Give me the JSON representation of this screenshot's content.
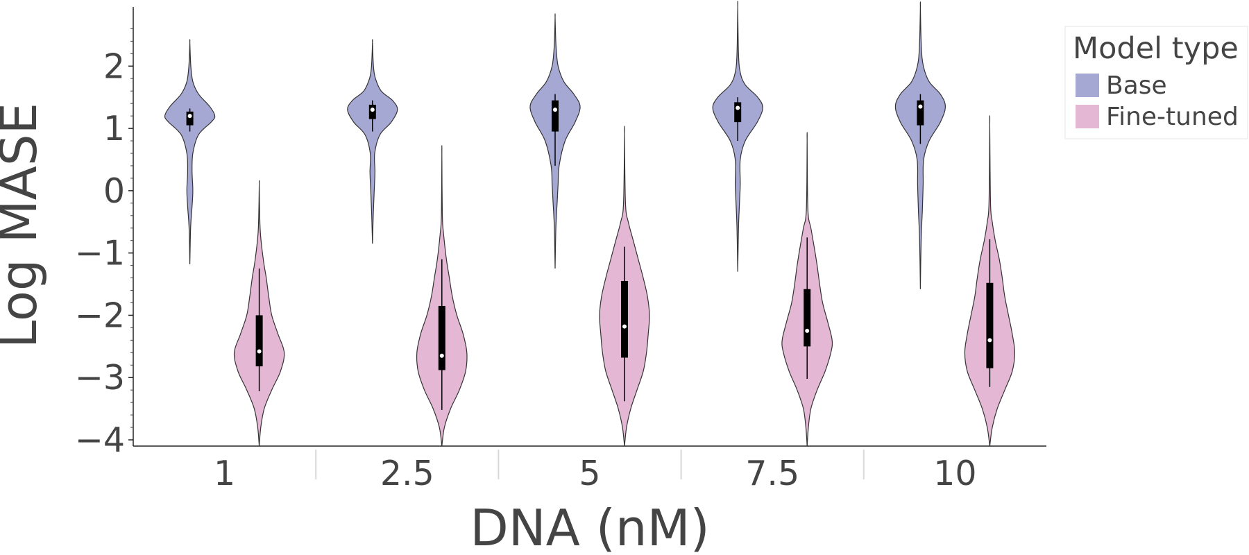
{
  "chart_data": {
    "type": "violin",
    "xlabel": "DNA (nM)",
    "ylabel": "Log MASE",
    "ylim": [
      -4.1,
      2.95
    ],
    "y_ticks": [
      2,
      1,
      0,
      -1,
      -2,
      -3,
      -4
    ],
    "y_tick_labels": [
      "2",
      "1",
      "0",
      "−1",
      "−2",
      "−3",
      "−4"
    ],
    "categories": [
      "1",
      "2.5",
      "5",
      "7.5",
      "10"
    ],
    "legend": {
      "title": "Model type",
      "placement": "top-right",
      "items": [
        {
          "label": "Base",
          "color": "#a6a8d4"
        },
        {
          "label": "Fine-tuned",
          "color": "#e4b8d4"
        }
      ]
    },
    "series": [
      {
        "name": "Base",
        "color": "#a6a8d4",
        "violins": [
          {
            "category": "1",
            "min": -1.18,
            "max": 2.38,
            "q1": 1.05,
            "median": 1.2,
            "q3": 1.27,
            "whisker_low": 0.95,
            "whisker_high": 1.32,
            "profile": [
              [
                -1.18,
                0.0
              ],
              [
                -0.6,
                0.03
              ],
              [
                -0.3,
                0.08
              ],
              [
                0.0,
                0.12
              ],
              [
                0.3,
                0.09
              ],
              [
                0.6,
                0.12
              ],
              [
                0.9,
                0.35
              ],
              [
                1.1,
                0.85
              ],
              [
                1.2,
                1.0
              ],
              [
                1.35,
                0.8
              ],
              [
                1.55,
                0.35
              ],
              [
                1.75,
                0.12
              ],
              [
                2.0,
                0.04
              ],
              [
                2.38,
                0.0
              ]
            ]
          },
          {
            "category": "2.5",
            "min": -0.85,
            "max": 2.38,
            "q1": 1.15,
            "median": 1.3,
            "q3": 1.38,
            "whisker_low": 0.95,
            "whisker_high": 1.45,
            "profile": [
              [
                -0.85,
                0.0
              ],
              [
                -0.4,
                0.03
              ],
              [
                0.0,
                0.07
              ],
              [
                0.3,
                0.1
              ],
              [
                0.6,
                0.09
              ],
              [
                0.9,
                0.3
              ],
              [
                1.1,
                0.75
              ],
              [
                1.3,
                1.0
              ],
              [
                1.45,
                0.8
              ],
              [
                1.6,
                0.35
              ],
              [
                1.8,
                0.12
              ],
              [
                2.0,
                0.04
              ],
              [
                2.38,
                0.0
              ]
            ]
          },
          {
            "category": "5",
            "min": -1.25,
            "max": 2.78,
            "q1": 0.95,
            "median": 1.3,
            "q3": 1.45,
            "whisker_low": 0.4,
            "whisker_high": 1.55,
            "profile": [
              [
                -1.25,
                0.0
              ],
              [
                -0.6,
                0.03
              ],
              [
                -0.2,
                0.08
              ],
              [
                0.1,
                0.12
              ],
              [
                0.4,
                0.16
              ],
              [
                0.8,
                0.4
              ],
              [
                1.1,
                0.8
              ],
              [
                1.35,
                1.0
              ],
              [
                1.55,
                0.75
              ],
              [
                1.75,
                0.35
              ],
              [
                2.0,
                0.12
              ],
              [
                2.3,
                0.04
              ],
              [
                2.78,
                0.0
              ]
            ]
          },
          {
            "category": "7.5",
            "min": -1.3,
            "max": 2.95,
            "q1": 1.1,
            "median": 1.33,
            "q3": 1.42,
            "whisker_low": 0.8,
            "whisker_high": 1.5,
            "profile": [
              [
                -1.3,
                0.0
              ],
              [
                -0.6,
                0.03
              ],
              [
                -0.2,
                0.07
              ],
              [
                0.1,
                0.1
              ],
              [
                0.5,
                0.1
              ],
              [
                0.8,
                0.3
              ],
              [
                1.1,
                0.78
              ],
              [
                1.33,
                1.0
              ],
              [
                1.5,
                0.8
              ],
              [
                1.7,
                0.3
              ],
              [
                1.9,
                0.1
              ],
              [
                2.2,
                0.03
              ],
              [
                2.95,
                0.0
              ]
            ]
          },
          {
            "category": "10",
            "min": -1.58,
            "max": 2.95,
            "q1": 1.05,
            "median": 1.35,
            "q3": 1.45,
            "whisker_low": 0.75,
            "whisker_high": 1.55,
            "profile": [
              [
                -1.58,
                0.0
              ],
              [
                -0.8,
                0.03
              ],
              [
                -0.3,
                0.08
              ],
              [
                0.1,
                0.11
              ],
              [
                0.5,
                0.13
              ],
              [
                0.8,
                0.35
              ],
              [
                1.1,
                0.8
              ],
              [
                1.35,
                1.0
              ],
              [
                1.55,
                0.8
              ],
              [
                1.75,
                0.35
              ],
              [
                2.0,
                0.12
              ],
              [
                2.3,
                0.04
              ],
              [
                2.95,
                0.0
              ]
            ]
          }
        ]
      },
      {
        "name": "Fine-tuned",
        "color": "#e4b8d4",
        "violins": [
          {
            "category": "1",
            "min": -4.1,
            "max": 0.1,
            "q1": -2.82,
            "median": -2.58,
            "q3": -2.0,
            "whisker_low": -3.22,
            "whisker_high": -1.25,
            "profile": [
              [
                -4.1,
                0.0
              ],
              [
                -3.8,
                0.06
              ],
              [
                -3.5,
                0.2
              ],
              [
                -3.2,
                0.5
              ],
              [
                -2.9,
                0.85
              ],
              [
                -2.6,
                1.0
              ],
              [
                -2.3,
                0.75
              ],
              [
                -2.0,
                0.5
              ],
              [
                -1.7,
                0.38
              ],
              [
                -1.4,
                0.28
              ],
              [
                -1.1,
                0.16
              ],
              [
                -0.7,
                0.05
              ],
              [
                -0.4,
                0.02
              ],
              [
                0.1,
                0.0
              ]
            ]
          },
          {
            "category": "2.5",
            "min": -4.1,
            "max": 0.6,
            "q1": -2.88,
            "median": -2.65,
            "q3": -1.85,
            "whisker_low": -3.52,
            "whisker_high": -1.1,
            "profile": [
              [
                -4.1,
                0.0
              ],
              [
                -3.8,
                0.1
              ],
              [
                -3.5,
                0.35
              ],
              [
                -3.2,
                0.7
              ],
              [
                -2.9,
                0.95
              ],
              [
                -2.6,
                1.0
              ],
              [
                -2.3,
                0.85
              ],
              [
                -2.0,
                0.6
              ],
              [
                -1.7,
                0.42
              ],
              [
                -1.4,
                0.3
              ],
              [
                -1.1,
                0.18
              ],
              [
                -0.7,
                0.07
              ],
              [
                -0.4,
                0.02
              ],
              [
                0.6,
                0.0
              ]
            ]
          },
          {
            "category": "5",
            "min": -4.1,
            "max": 0.9,
            "q1": -2.68,
            "median": -2.18,
            "q3": -1.45,
            "whisker_low": -3.38,
            "whisker_high": -0.9,
            "profile": [
              [
                -4.1,
                0.0
              ],
              [
                -3.8,
                0.08
              ],
              [
                -3.5,
                0.25
              ],
              [
                -3.2,
                0.5
              ],
              [
                -2.9,
                0.75
              ],
              [
                -2.6,
                0.88
              ],
              [
                -2.3,
                0.95
              ],
              [
                -2.0,
                1.0
              ],
              [
                -1.7,
                0.92
              ],
              [
                -1.4,
                0.75
              ],
              [
                -1.1,
                0.55
              ],
              [
                -0.8,
                0.35
              ],
              [
                -0.5,
                0.15
              ],
              [
                -0.2,
                0.04
              ],
              [
                0.9,
                0.0
              ]
            ]
          },
          {
            "category": "7.5",
            "min": -4.1,
            "max": 0.8,
            "q1": -2.5,
            "median": -2.25,
            "q3": -1.58,
            "whisker_low": -3.02,
            "whisker_high": -0.75,
            "profile": [
              [
                -4.1,
                0.0
              ],
              [
                -3.8,
                0.05
              ],
              [
                -3.5,
                0.15
              ],
              [
                -3.2,
                0.4
              ],
              [
                -2.9,
                0.72
              ],
              [
                -2.6,
                0.95
              ],
              [
                -2.4,
                1.0
              ],
              [
                -2.1,
                0.82
              ],
              [
                -1.8,
                0.62
              ],
              [
                -1.5,
                0.5
              ],
              [
                -1.2,
                0.4
              ],
              [
                -0.9,
                0.28
              ],
              [
                -0.6,
                0.15
              ],
              [
                -0.3,
                0.03
              ],
              [
                0.8,
                0.0
              ]
            ]
          },
          {
            "category": "10",
            "min": -4.1,
            "max": 1.05,
            "q1": -2.85,
            "median": -2.4,
            "q3": -1.48,
            "whisker_low": -3.15,
            "whisker_high": -0.78,
            "profile": [
              [
                -4.1,
                0.0
              ],
              [
                -3.8,
                0.1
              ],
              [
                -3.5,
                0.3
              ],
              [
                -3.2,
                0.6
              ],
              [
                -2.9,
                0.9
              ],
              [
                -2.6,
                1.0
              ],
              [
                -2.3,
                0.9
              ],
              [
                -2.0,
                0.75
              ],
              [
                -1.7,
                0.6
              ],
              [
                -1.4,
                0.5
              ],
              [
                -1.1,
                0.38
              ],
              [
                -0.8,
                0.22
              ],
              [
                -0.5,
                0.1
              ],
              [
                -0.2,
                0.03
              ],
              [
                1.05,
                0.0
              ]
            ]
          }
        ]
      }
    ]
  }
}
